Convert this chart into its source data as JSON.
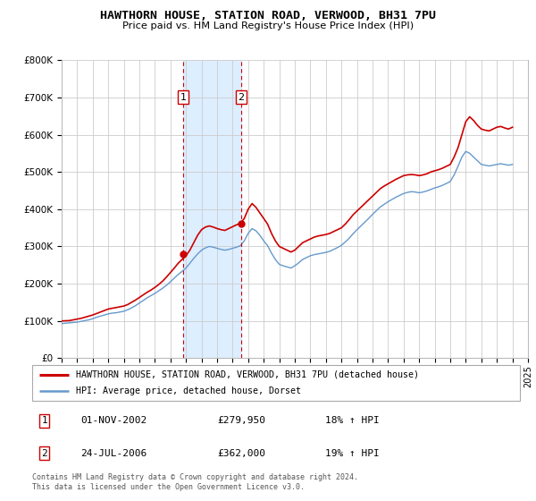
{
  "title": "HAWTHORN HOUSE, STATION ROAD, VERWOOD, BH31 7PU",
  "subtitle": "Price paid vs. HM Land Registry's House Price Index (HPI)",
  "red_label": "HAWTHORN HOUSE, STATION ROAD, VERWOOD, BH31 7PU (detached house)",
  "blue_label": "HPI: Average price, detached house, Dorset",
  "purchase1_label": "01-NOV-2002",
  "purchase1_price": "£279,950",
  "purchase1_hpi": "18% ↑ HPI",
  "purchase2_label": "24-JUL-2006",
  "purchase2_price": "£362,000",
  "purchase2_hpi": "19% ↑ HPI",
  "p1_x": 2002.833,
  "p1_y": 279950,
  "p2_x": 2006.556,
  "p2_y": 362000,
  "xmin": 1995,
  "xmax": 2025,
  "ymin": 0,
  "ymax": 800000,
  "yticks": [
    0,
    100000,
    200000,
    300000,
    400000,
    500000,
    600000,
    700000,
    800000
  ],
  "ytick_labels": [
    "£0",
    "£100K",
    "£200K",
    "£300K",
    "£400K",
    "£500K",
    "£600K",
    "£700K",
    "£800K"
  ],
  "red_color": "#cc0000",
  "blue_color": "#6699cc",
  "shade_color": "#ddeeff",
  "vline_color": "#cc0000",
  "grid_color": "#cccccc",
  "box_edge_color": "#cc0000",
  "legend_edge_color": "#aaaaaa",
  "footnote_color": "#555555",
  "footnote": "Contains HM Land Registry data © Crown copyright and database right 2024.\nThis data is licensed under the Open Government Licence v3.0.",
  "red_x": [
    1995.0,
    1995.25,
    1995.5,
    1995.75,
    1996.0,
    1996.25,
    1996.5,
    1996.75,
    1997.0,
    1997.25,
    1997.5,
    1997.75,
    1998.0,
    1998.25,
    1998.5,
    1998.75,
    1999.0,
    1999.25,
    1999.5,
    1999.75,
    2000.0,
    2000.25,
    2000.5,
    2000.75,
    2001.0,
    2001.25,
    2001.5,
    2001.75,
    2002.0,
    2002.25,
    2002.5,
    2002.75,
    2003.0,
    2003.25,
    2003.5,
    2003.75,
    2004.0,
    2004.25,
    2004.5,
    2004.75,
    2005.0,
    2005.25,
    2005.5,
    2005.75,
    2006.0,
    2006.25,
    2006.5,
    2006.75,
    2007.0,
    2007.25,
    2007.5,
    2007.75,
    2008.0,
    2008.25,
    2008.5,
    2008.75,
    2009.0,
    2009.25,
    2009.5,
    2009.75,
    2010.0,
    2010.25,
    2010.5,
    2010.75,
    2011.0,
    2011.25,
    2011.5,
    2011.75,
    2012.0,
    2012.25,
    2012.5,
    2012.75,
    2013.0,
    2013.25,
    2013.5,
    2013.75,
    2014.0,
    2014.25,
    2014.5,
    2014.75,
    2015.0,
    2015.25,
    2015.5,
    2015.75,
    2016.0,
    2016.25,
    2016.5,
    2016.75,
    2017.0,
    2017.25,
    2017.5,
    2017.75,
    2018.0,
    2018.25,
    2018.5,
    2018.75,
    2019.0,
    2019.25,
    2019.5,
    2019.75,
    2020.0,
    2020.25,
    2020.5,
    2020.75,
    2021.0,
    2021.25,
    2021.5,
    2021.75,
    2022.0,
    2022.25,
    2022.5,
    2022.75,
    2023.0,
    2023.25,
    2023.5,
    2023.75,
    2024.0
  ],
  "red_y": [
    100000,
    100500,
    101000,
    103000,
    105000,
    107000,
    110000,
    113000,
    116000,
    120000,
    124000,
    128000,
    132000,
    134000,
    136000,
    138000,
    140000,
    144000,
    150000,
    156000,
    163000,
    170000,
    177000,
    183000,
    190000,
    198000,
    207000,
    218000,
    230000,
    242000,
    255000,
    265000,
    275000,
    290000,
    310000,
    330000,
    345000,
    352000,
    355000,
    352000,
    348000,
    345000,
    343000,
    348000,
    353000,
    358000,
    362000,
    375000,
    400000,
    415000,
    405000,
    390000,
    375000,
    360000,
    335000,
    315000,
    300000,
    295000,
    290000,
    285000,
    290000,
    300000,
    310000,
    315000,
    320000,
    325000,
    328000,
    330000,
    332000,
    335000,
    340000,
    345000,
    350000,
    360000,
    372000,
    385000,
    395000,
    405000,
    415000,
    425000,
    435000,
    445000,
    455000,
    462000,
    468000,
    474000,
    480000,
    485000,
    490000,
    492000,
    493000,
    492000,
    490000,
    492000,
    495000,
    500000,
    503000,
    506000,
    510000,
    515000,
    520000,
    540000,
    565000,
    600000,
    635000,
    648000,
    638000,
    625000,
    615000,
    612000,
    610000,
    615000,
    620000,
    622000,
    618000,
    615000,
    620000
  ],
  "blue_x": [
    1995.0,
    1995.25,
    1995.5,
    1995.75,
    1996.0,
    1996.25,
    1996.5,
    1996.75,
    1997.0,
    1997.25,
    1997.5,
    1997.75,
    1998.0,
    1998.25,
    1998.5,
    1998.75,
    1999.0,
    1999.25,
    1999.5,
    1999.75,
    2000.0,
    2000.25,
    2000.5,
    2000.75,
    2001.0,
    2001.25,
    2001.5,
    2001.75,
    2002.0,
    2002.25,
    2002.5,
    2002.75,
    2003.0,
    2003.25,
    2003.5,
    2003.75,
    2004.0,
    2004.25,
    2004.5,
    2004.75,
    2005.0,
    2005.25,
    2005.5,
    2005.75,
    2006.0,
    2006.25,
    2006.5,
    2006.75,
    2007.0,
    2007.25,
    2007.5,
    2007.75,
    2008.0,
    2008.25,
    2008.5,
    2008.75,
    2009.0,
    2009.25,
    2009.5,
    2009.75,
    2010.0,
    2010.25,
    2010.5,
    2010.75,
    2011.0,
    2011.25,
    2011.5,
    2011.75,
    2012.0,
    2012.25,
    2012.5,
    2012.75,
    2013.0,
    2013.25,
    2013.5,
    2013.75,
    2014.0,
    2014.25,
    2014.5,
    2014.75,
    2015.0,
    2015.25,
    2015.5,
    2015.75,
    2016.0,
    2016.25,
    2016.5,
    2016.75,
    2017.0,
    2017.25,
    2017.5,
    2017.75,
    2018.0,
    2018.25,
    2018.5,
    2018.75,
    2019.0,
    2019.25,
    2019.5,
    2019.75,
    2020.0,
    2020.25,
    2020.5,
    2020.75,
    2021.0,
    2021.25,
    2021.5,
    2021.75,
    2022.0,
    2022.25,
    2022.5,
    2022.75,
    2023.0,
    2023.25,
    2023.5,
    2023.75,
    2024.0
  ],
  "blue_y": [
    93000,
    94000,
    95000,
    96000,
    97000,
    99000,
    101000,
    103000,
    106000,
    110000,
    113000,
    116000,
    119000,
    121000,
    122000,
    124000,
    126000,
    130000,
    135000,
    141000,
    148000,
    155000,
    162000,
    168000,
    174000,
    181000,
    188000,
    196000,
    205000,
    215000,
    225000,
    233000,
    242000,
    255000,
    268000,
    280000,
    290000,
    296000,
    300000,
    298000,
    295000,
    292000,
    290000,
    292000,
    295000,
    298000,
    302000,
    315000,
    335000,
    348000,
    342000,
    330000,
    315000,
    302000,
    282000,
    265000,
    252000,
    248000,
    245000,
    242000,
    248000,
    256000,
    265000,
    270000,
    275000,
    278000,
    280000,
    282000,
    284000,
    287000,
    292000,
    297000,
    303000,
    312000,
    322000,
    334000,
    345000,
    355000,
    365000,
    375000,
    386000,
    396000,
    406000,
    413000,
    420000,
    426000,
    432000,
    437000,
    442000,
    445000,
    447000,
    446000,
    444000,
    446000,
    449000,
    453000,
    457000,
    460000,
    464000,
    469000,
    474000,
    492000,
    515000,
    540000,
    555000,
    550000,
    540000,
    530000,
    520000,
    518000,
    516000,
    518000,
    520000,
    522000,
    520000,
    518000,
    520000
  ]
}
